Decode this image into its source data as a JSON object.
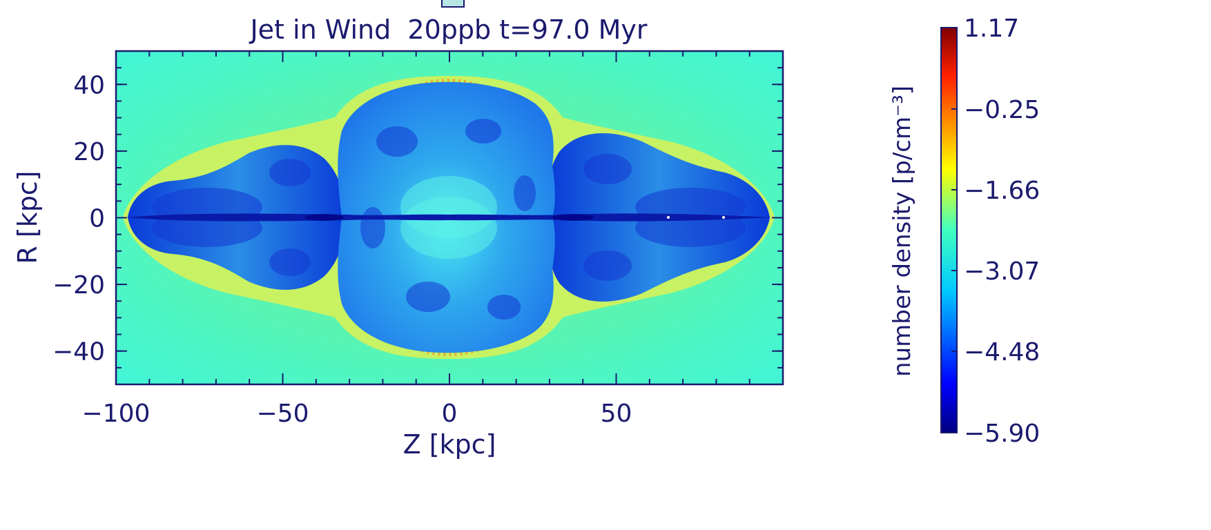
{
  "chart_data": {
    "type": "heatmap",
    "title": "Jet in Wind  20ppb t=97.0 Myr",
    "xlabel": "Z [kpc]",
    "ylabel": "R [kpc]",
    "xlim": [
      -100,
      100
    ],
    "ylim": [
      -50,
      50
    ],
    "x_ticks": [
      -100,
      -50,
      0,
      50
    ],
    "x_tick_labels": [
      "−100",
      "−50",
      "0",
      "50"
    ],
    "y_ticks": [
      -40,
      -20,
      0,
      20,
      40
    ],
    "y_tick_labels": [
      "−40",
      "−20",
      "0",
      "20",
      "40"
    ],
    "colorbar": {
      "label": "number density [p/cm⁻³]",
      "min": -5.9,
      "max": 1.17,
      "tick_values": [
        1.17,
        -0.25,
        -1.66,
        -3.07,
        -4.48,
        -5.9
      ],
      "tick_labels": [
        "1.17",
        "−0.25",
        "−1.66",
        "−3.07",
        "−4.48",
        "−5.90"
      ],
      "colormap": "jet"
    },
    "features": {
      "ambient_medium_value": -2.8,
      "central_bubble_half_width_kpc": 33,
      "central_bubble_height_kpc": 41,
      "lobe_tip_kpc": 97,
      "lobe_max_height_kpc": 26
    }
  },
  "colors": {
    "axis": "#1a1a6e",
    "background": "#ffffff"
  }
}
